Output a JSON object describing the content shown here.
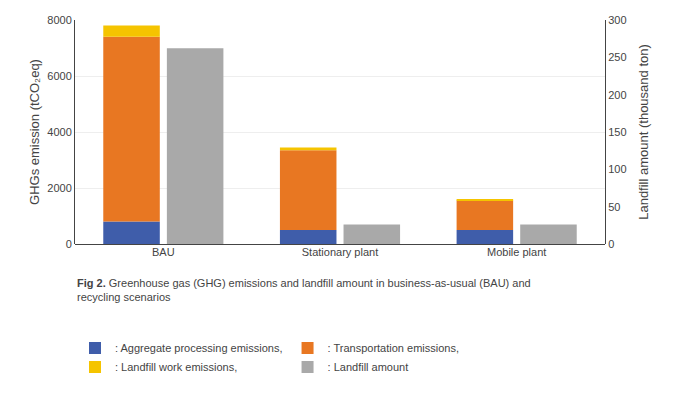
{
  "chart_data": {
    "type": "bar",
    "stacked": true,
    "categories": [
      "BAU",
      "Stationary plant",
      "Mobile plant"
    ],
    "series": [
      {
        "name": ": Aggregate processing emissions,",
        "color": "#3F5DAA",
        "values": [
          800,
          500,
          500
        ]
      },
      {
        "name": ": Transportation emissions,",
        "color": "#E87722",
        "values": [
          6600,
          2850,
          1050
        ]
      },
      {
        "name": ": Landfill work emissions,",
        "color": "#F5C400",
        "values": [
          400,
          100,
          50
        ]
      },
      {
        "name": ": Landfill amount",
        "color": "#A9A9A9",
        "values": [
          262,
          26,
          26
        ],
        "axis": "y2"
      }
    ],
    "ylabel": "GHGs emission (tCO₂eq)",
    "y2label": "Landfill amount (thousand ton)",
    "ylim": [
      0,
      8000
    ],
    "yticks": [
      0,
      2000,
      4000,
      6000,
      8000
    ],
    "y2lim": [
      0,
      300
    ],
    "y2ticks": [
      0,
      50,
      100,
      150,
      200,
      250,
      300
    ],
    "grid": true,
    "legend": "bottom",
    "annotations": [
      "Fig 2.",
      "Greenhouse gas (GHG) emissions and landfill amount in business-as-usual (BAU) and\nrecycling scenarios"
    ]
  }
}
